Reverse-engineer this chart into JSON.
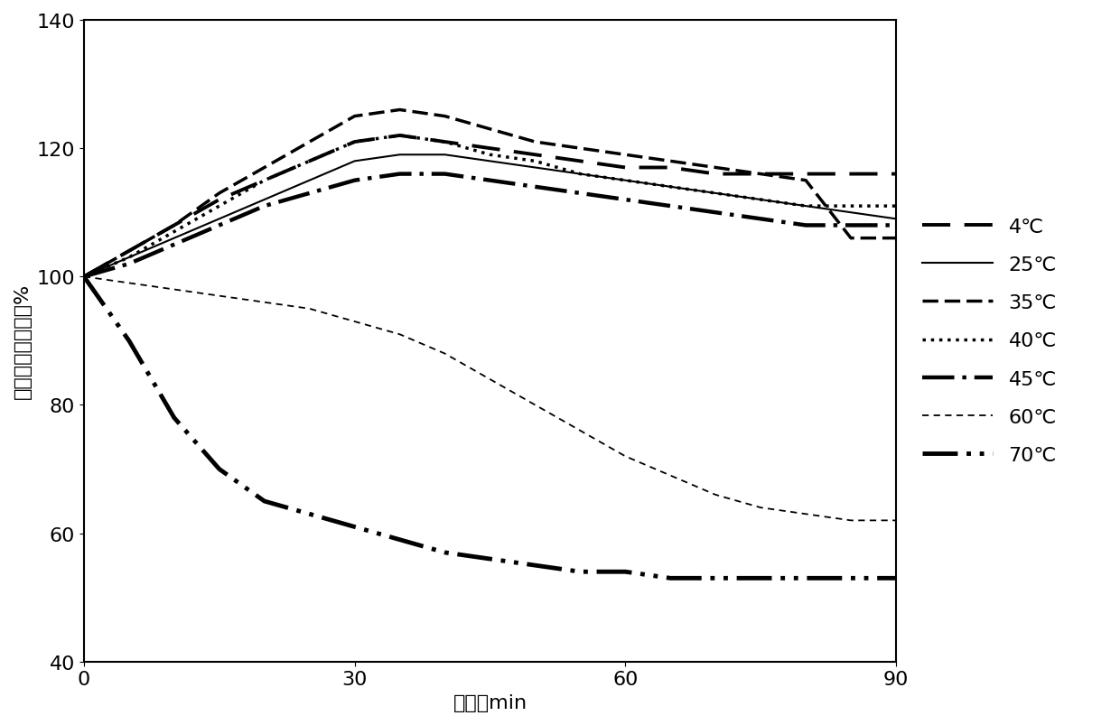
{
  "title": "",
  "xlabel": "时间，min",
  "ylabel": "残余脂肪酶活性，%",
  "xlim": [
    0,
    90
  ],
  "ylim": [
    40,
    140
  ],
  "xticks": [
    0,
    30,
    60,
    90
  ],
  "yticks": [
    40,
    60,
    80,
    100,
    120,
    140
  ],
  "series": {
    "4℃": {
      "x": [
        0,
        5,
        10,
        15,
        20,
        25,
        30,
        35,
        40,
        45,
        50,
        55,
        60,
        65,
        70,
        75,
        80,
        85,
        90
      ],
      "y": [
        100,
        104,
        108,
        112,
        115,
        118,
        121,
        122,
        121,
        120,
        119,
        118,
        117,
        117,
        116,
        116,
        116,
        116,
        116
      ],
      "linestyle": "--",
      "linewidth": 2.5,
      "color": "#000000",
      "dash_seq": [
        8,
        4
      ]
    },
    "25℃": {
      "x": [
        0,
        5,
        10,
        15,
        20,
        25,
        30,
        35,
        40,
        45,
        50,
        55,
        60,
        65,
        70,
        75,
        80,
        85,
        90
      ],
      "y": [
        100,
        103,
        106,
        109,
        112,
        115,
        118,
        119,
        119,
        118,
        117,
        116,
        115,
        114,
        113,
        112,
        111,
        110,
        109
      ],
      "linestyle": "-",
      "linewidth": 1.5,
      "color": "#000000"
    },
    "35℃": {
      "x": [
        0,
        5,
        10,
        15,
        20,
        25,
        30,
        35,
        40,
        45,
        50,
        55,
        60,
        65,
        70,
        75,
        80,
        85,
        90
      ],
      "y": [
        100,
        104,
        108,
        113,
        117,
        121,
        125,
        126,
        125,
        123,
        121,
        120,
        119,
        118,
        117,
        116,
        115,
        106,
        106
      ],
      "linestyle": "--",
      "linewidth": 2.5,
      "color": "#000000",
      "dash_seq": [
        5,
        3
      ]
    },
    "40℃": {
      "x": [
        0,
        5,
        10,
        15,
        20,
        25,
        30,
        35,
        40,
        45,
        50,
        55,
        60,
        65,
        70,
        75,
        80,
        85,
        90
      ],
      "y": [
        100,
        103,
        107,
        111,
        115,
        118,
        121,
        122,
        121,
        119,
        118,
        116,
        115,
        114,
        113,
        112,
        111,
        111,
        111
      ],
      "linestyle": ":",
      "linewidth": 2.5,
      "color": "#000000"
    },
    "45℃": {
      "x": [
        0,
        5,
        10,
        15,
        20,
        25,
        30,
        35,
        40,
        45,
        50,
        55,
        60,
        65,
        70,
        75,
        80,
        85,
        90
      ],
      "y": [
        100,
        102,
        105,
        108,
        111,
        113,
        115,
        116,
        116,
        115,
        114,
        113,
        112,
        111,
        110,
        109,
        108,
        108,
        108
      ],
      "linestyle": "-.",
      "linewidth": 3.0,
      "color": "#000000"
    },
    "60℃": {
      "x": [
        0,
        5,
        10,
        15,
        20,
        25,
        30,
        35,
        40,
        45,
        50,
        55,
        60,
        65,
        70,
        75,
        80,
        85,
        90
      ],
      "y": [
        100,
        99,
        98,
        97,
        96,
        95,
        93,
        91,
        88,
        84,
        80,
        76,
        72,
        69,
        66,
        64,
        63,
        62,
        62
      ],
      "linestyle": "--",
      "linewidth": 1.2,
      "color": "#000000",
      "dash_seq": [
        4,
        3
      ]
    },
    "70℃": {
      "x": [
        0,
        5,
        10,
        15,
        20,
        25,
        30,
        35,
        40,
        45,
        50,
        55,
        60,
        65,
        70,
        75,
        80,
        85,
        90
      ],
      "y": [
        100,
        90,
        78,
        70,
        65,
        63,
        61,
        59,
        57,
        56,
        55,
        54,
        54,
        53,
        53,
        53,
        53,
        53,
        53
      ],
      "linestyle": "-.",
      "linewidth": 3.5,
      "color": "#000000"
    }
  },
  "legend_labels": [
    "4℃",
    "25℃",
    "35℃",
    "40℃",
    "45℃",
    "60℃",
    "70℃"
  ],
  "background_color": "#ffffff",
  "font_size": 16
}
